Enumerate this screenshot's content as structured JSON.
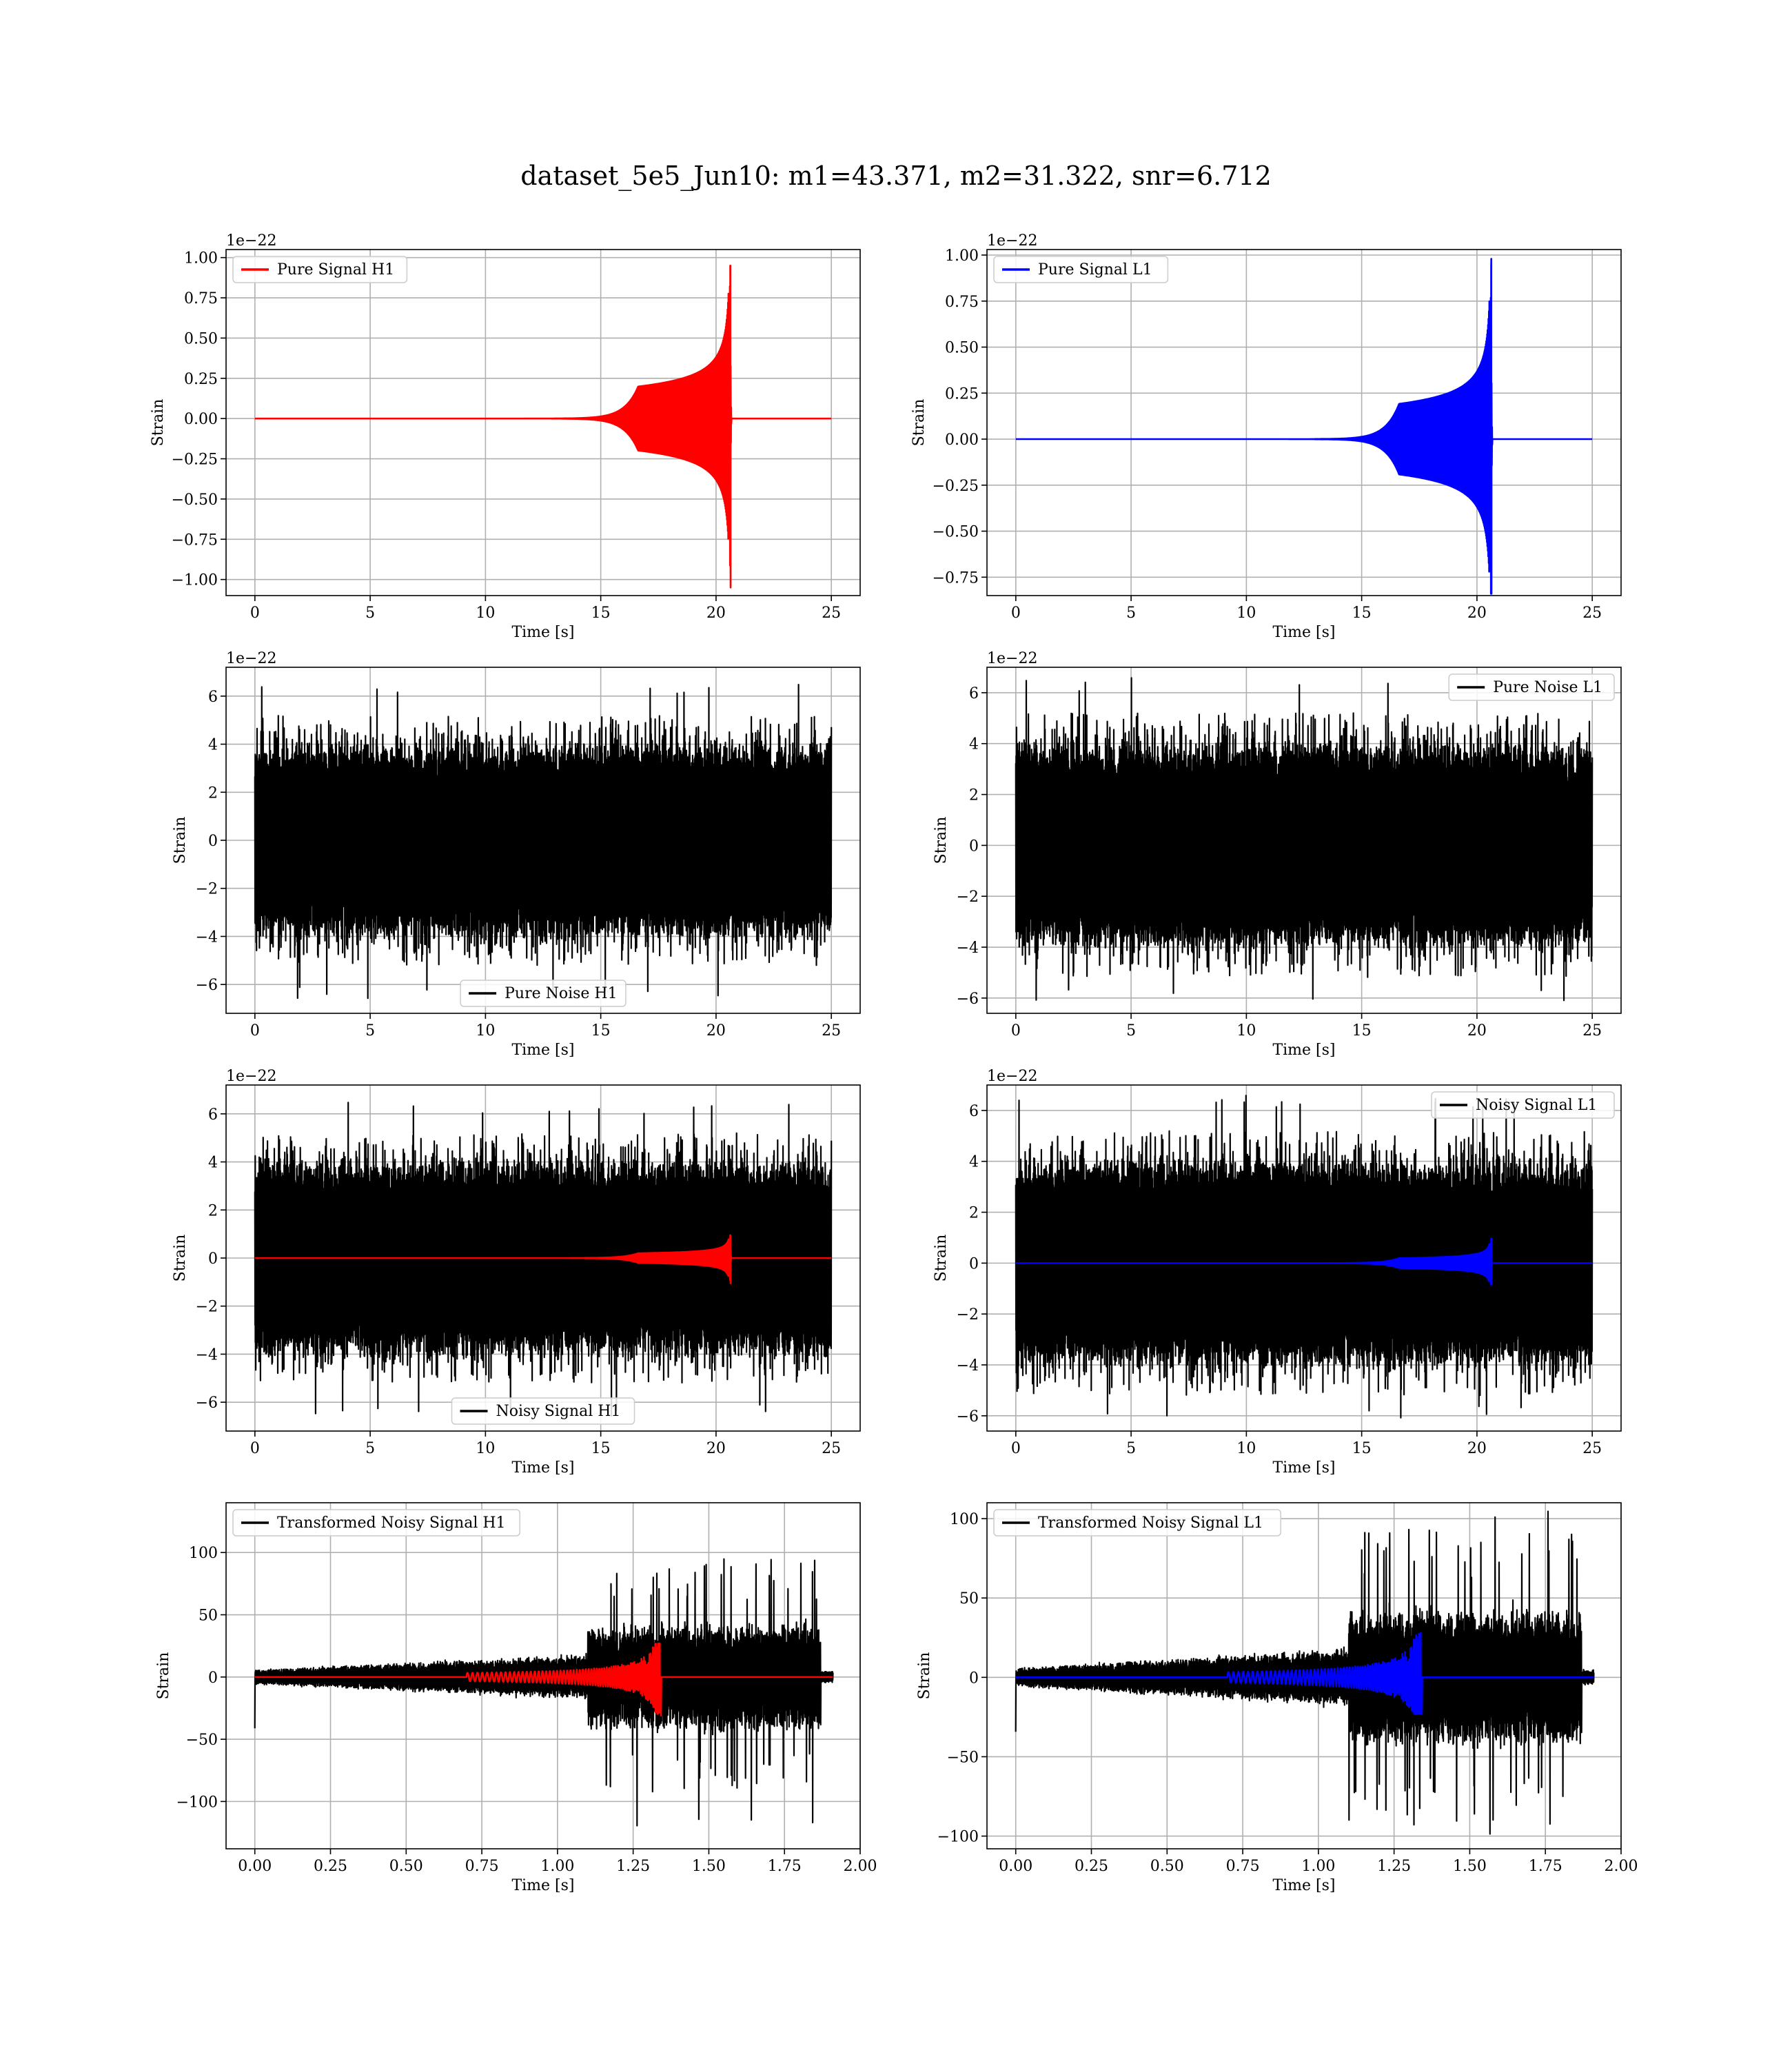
{
  "figure": {
    "title": "dataset_5e5_Jun10: m1=43.371, m2=31.322, snr=6.712"
  },
  "colors": {
    "signal_h1": "#ff0000",
    "signal_l1": "#0000ff",
    "noise": "#000000",
    "grid": "#b0b0b0"
  },
  "chart_data": [
    {
      "id": "pure-signal-h1",
      "type": "line",
      "title": "",
      "xlabel": "Time [s]",
      "ylabel": "Strain",
      "offset_text": "1e−22",
      "xlim": [
        -1.25,
        26.25
      ],
      "ylim": [
        -1.1,
        1.05
      ],
      "xticks": [
        0,
        5,
        10,
        15,
        20,
        25
      ],
      "xtick_labels": [
        "0",
        "5",
        "10",
        "15",
        "20",
        "25"
      ],
      "yticks": [
        1.0,
        0.75,
        0.5,
        0.25,
        0.0,
        -0.25,
        -0.5,
        -0.75,
        -1.0
      ],
      "ytick_labels": [
        "1.00",
        "0.75",
        "0.50",
        "0.25",
        "0.00",
        "−0.25",
        "−0.50",
        "−0.75",
        "−1.00"
      ],
      "grid": true,
      "legend_position": "upper-left",
      "series": [
        {
          "name": "Pure Signal H1",
          "color": "#ff0000",
          "kind": "chirp",
          "duration": 25.0,
          "merger": 20.62,
          "peak_pos": 0.95,
          "peak_neg": -1.05,
          "plateau": 0.28
        }
      ]
    },
    {
      "id": "pure-signal-l1",
      "type": "line",
      "title": "",
      "xlabel": "Time [s]",
      "ylabel": "Strain",
      "offset_text": "1e−22",
      "xlim": [
        -1.25,
        26.25
      ],
      "ylim": [
        -0.85,
        1.03
      ],
      "xticks": [
        0,
        5,
        10,
        15,
        20,
        25
      ],
      "xtick_labels": [
        "0",
        "5",
        "10",
        "15",
        "20",
        "25"
      ],
      "yticks": [
        1.0,
        0.75,
        0.5,
        0.25,
        0.0,
        -0.25,
        -0.5,
        -0.75
      ],
      "ytick_labels": [
        "1.00",
        "0.75",
        "0.50",
        "0.25",
        "0.00",
        "−0.25",
        "−0.50",
        "−0.75"
      ],
      "grid": true,
      "legend_position": "upper-left",
      "series": [
        {
          "name": "Pure Signal L1",
          "color": "#0000ff",
          "kind": "chirp",
          "duration": 25.0,
          "merger": 20.62,
          "peak_pos": 0.98,
          "peak_neg": -0.84,
          "plateau": 0.27
        }
      ]
    },
    {
      "id": "pure-noise-h1",
      "type": "line",
      "title": "",
      "xlabel": "Time [s]",
      "ylabel": "Strain",
      "offset_text": "1e−22",
      "xlim": [
        -1.25,
        26.25
      ],
      "ylim": [
        -7.2,
        7.2
      ],
      "xticks": [
        0,
        5,
        10,
        15,
        20,
        25
      ],
      "xtick_labels": [
        "0",
        "5",
        "10",
        "15",
        "20",
        "25"
      ],
      "yticks": [
        6,
        4,
        2,
        0,
        -2,
        -4,
        -6
      ],
      "ytick_labels": [
        "6",
        "4",
        "2",
        "0",
        "−2",
        "−4",
        "−6"
      ],
      "grid": true,
      "legend_position": "lower-center",
      "series": [
        {
          "name": "Pure Noise H1",
          "color": "#000000",
          "kind": "noise",
          "duration": 25.0,
          "amp_max": 6.5,
          "amp_min": -6.6
        }
      ]
    },
    {
      "id": "pure-noise-l1",
      "type": "line",
      "title": "",
      "xlabel": "Time [s]",
      "ylabel": "Strain",
      "offset_text": "1e−22",
      "xlim": [
        -1.25,
        26.25
      ],
      "ylim": [
        -6.6,
        7.0
      ],
      "xticks": [
        0,
        5,
        10,
        15,
        20,
        25
      ],
      "xtick_labels": [
        "0",
        "5",
        "10",
        "15",
        "20",
        "25"
      ],
      "yticks": [
        6,
        4,
        2,
        0,
        -2,
        -4,
        -6
      ],
      "ytick_labels": [
        "6",
        "4",
        "2",
        "0",
        "−2",
        "−4",
        "−6"
      ],
      "grid": true,
      "legend_position": "upper-right",
      "series": [
        {
          "name": "Pure Noise L1",
          "color": "#000000",
          "kind": "noise",
          "duration": 25.0,
          "amp_max": 6.6,
          "amp_min": -6.1
        }
      ]
    },
    {
      "id": "noisy-signal-h1",
      "type": "line",
      "title": "",
      "xlabel": "Time [s]",
      "ylabel": "Strain",
      "offset_text": "1e−22",
      "xlim": [
        -1.25,
        26.25
      ],
      "ylim": [
        -7.2,
        7.2
      ],
      "xticks": [
        0,
        5,
        10,
        15,
        20,
        25
      ],
      "xtick_labels": [
        "0",
        "5",
        "10",
        "15",
        "20",
        "25"
      ],
      "yticks": [
        6,
        4,
        2,
        0,
        -2,
        -4,
        -6
      ],
      "ytick_labels": [
        "6",
        "4",
        "2",
        "0",
        "−2",
        "−4",
        "−6"
      ],
      "grid": true,
      "legend_position": "lower-center",
      "series": [
        {
          "name": "Noisy Signal H1",
          "color": "#000000",
          "kind": "noise",
          "duration": 25.0,
          "amp_max": 6.5,
          "amp_min": -6.6
        },
        {
          "color": "#ff0000",
          "kind": "chirp",
          "duration": 25.0,
          "merger": 20.62,
          "peak_pos": 0.95,
          "peak_neg": -1.05,
          "plateau": 0.28
        }
      ]
    },
    {
      "id": "noisy-signal-l1",
      "type": "line",
      "title": "",
      "xlabel": "Time [s]",
      "ylabel": "Strain",
      "offset_text": "1e−22",
      "xlim": [
        -1.25,
        26.25
      ],
      "ylim": [
        -6.6,
        7.0
      ],
      "xticks": [
        0,
        5,
        10,
        15,
        20,
        25
      ],
      "xtick_labels": [
        "0",
        "5",
        "10",
        "15",
        "20",
        "25"
      ],
      "yticks": [
        6,
        4,
        2,
        0,
        -2,
        -4,
        -6
      ],
      "ytick_labels": [
        "6",
        "4",
        "2",
        "0",
        "−2",
        "−4",
        "−6"
      ],
      "grid": true,
      "legend_position": "upper-right",
      "series": [
        {
          "name": "Noisy Signal L1",
          "color": "#000000",
          "kind": "noise",
          "duration": 25.0,
          "amp_max": 6.6,
          "amp_min": -6.1
        },
        {
          "color": "#0000ff",
          "kind": "chirp",
          "duration": 25.0,
          "merger": 20.62,
          "peak_pos": 0.98,
          "peak_neg": -0.84,
          "plateau": 0.27
        }
      ]
    },
    {
      "id": "transformed-noisy-signal-h1",
      "type": "line",
      "title": "",
      "xlabel": "Time [s]",
      "ylabel": "Strain",
      "offset_text": "",
      "xlim": [
        -0.095,
        2.0
      ],
      "ylim": [
        -138,
        140
      ],
      "xticks": [
        0.0,
        0.25,
        0.5,
        0.75,
        1.0,
        1.25,
        1.5,
        1.75,
        2.0
      ],
      "xtick_labels": [
        "0.00",
        "0.25",
        "0.50",
        "0.75",
        "1.00",
        "1.25",
        "1.50",
        "1.75",
        "2.00"
      ],
      "yticks": [
        100,
        50,
        0,
        -50,
        -100
      ],
      "ytick_labels": [
        "100",
        "50",
        "0",
        "−50",
        "−100"
      ],
      "grid": true,
      "legend_position": "upper-left",
      "series": [
        {
          "name": "Transformed Noisy Signal H1",
          "color": "#000000",
          "kind": "whitened",
          "duration": 1.91,
          "amp_max": 128,
          "amp_min": -125
        },
        {
          "color": "#ff0000",
          "kind": "whitened-chirp",
          "duration": 1.91,
          "merger": 1.34,
          "peak_pos": 27,
          "peak_neg": -31
        }
      ]
    },
    {
      "id": "transformed-noisy-signal-l1",
      "type": "line",
      "title": "",
      "xlabel": "Time [s]",
      "ylabel": "Strain",
      "offset_text": "",
      "xlim": [
        -0.095,
        2.0
      ],
      "ylim": [
        -108,
        110
      ],
      "xticks": [
        0.0,
        0.25,
        0.5,
        0.75,
        1.0,
        1.25,
        1.5,
        1.75,
        2.0
      ],
      "xtick_labels": [
        "0.00",
        "0.25",
        "0.50",
        "0.75",
        "1.00",
        "1.25",
        "1.50",
        "1.75",
        "2.00"
      ],
      "yticks": [
        100,
        50,
        0,
        -50,
        -100
      ],
      "ytick_labels": [
        "100",
        "50",
        "0",
        "−50",
        "−100"
      ],
      "grid": true,
      "legend_position": "upper-left",
      "series": [
        {
          "name": "Transformed Noisy Signal L1",
          "color": "#000000",
          "kind": "whitened",
          "duration": 1.91,
          "amp_max": 106,
          "amp_min": -104
        },
        {
          "color": "#0000ff",
          "kind": "whitened-chirp",
          "duration": 1.91,
          "merger": 1.34,
          "peak_pos": 28,
          "peak_neg": -23
        }
      ]
    }
  ]
}
